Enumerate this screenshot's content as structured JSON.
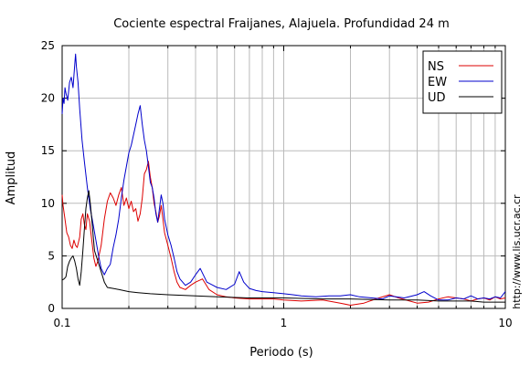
{
  "chart_data": {
    "type": "line",
    "title": "Cociente espectral Fraijanes, Alajuela. Profundidad 24 m",
    "xlabel": "Periodo (s)",
    "ylabel": "Amplitud",
    "x_scale": "log",
    "xlim": [
      0.1,
      10
    ],
    "ylim": [
      0,
      25
    ],
    "x_ticks": [
      0.1,
      1,
      10
    ],
    "x_tick_labels": [
      "0.1",
      "1",
      "10"
    ],
    "y_ticks": [
      0,
      5,
      10,
      15,
      20,
      25
    ],
    "y_tick_labels": [
      "0",
      "5",
      "10",
      "15",
      "20",
      "25"
    ],
    "grid": true,
    "legend_position": "top-right",
    "side_text": "http://www.lis.ucr.ac.cr",
    "series": [
      {
        "name": "NS",
        "color": "#dd0000",
        "points": [
          [
            0.1,
            10.8
          ],
          [
            0.101,
            9.8
          ],
          [
            0.103,
            8.5
          ],
          [
            0.105,
            7.2
          ],
          [
            0.107,
            6.8
          ],
          [
            0.109,
            6.0
          ],
          [
            0.111,
            5.7
          ],
          [
            0.113,
            6.5
          ],
          [
            0.115,
            6.0
          ],
          [
            0.117,
            5.8
          ],
          [
            0.12,
            6.8
          ],
          [
            0.122,
            8.5
          ],
          [
            0.124,
            9.0
          ],
          [
            0.126,
            8.0
          ],
          [
            0.128,
            7.5
          ],
          [
            0.13,
            9.0
          ],
          [
            0.133,
            8.3
          ],
          [
            0.136,
            6.5
          ],
          [
            0.139,
            4.8
          ],
          [
            0.142,
            4.0
          ],
          [
            0.145,
            4.5
          ],
          [
            0.15,
            6.0
          ],
          [
            0.155,
            8.5
          ],
          [
            0.16,
            10.2
          ],
          [
            0.165,
            11.0
          ],
          [
            0.17,
            10.5
          ],
          [
            0.175,
            9.8
          ],
          [
            0.18,
            10.8
          ],
          [
            0.185,
            11.5
          ],
          [
            0.19,
            9.8
          ],
          [
            0.195,
            10.5
          ],
          [
            0.2,
            9.5
          ],
          [
            0.205,
            10.2
          ],
          [
            0.21,
            9.2
          ],
          [
            0.215,
            9.5
          ],
          [
            0.22,
            8.3
          ],
          [
            0.225,
            9.0
          ],
          [
            0.23,
            10.5
          ],
          [
            0.235,
            12.8
          ],
          [
            0.24,
            13.2
          ],
          [
            0.245,
            14.0
          ],
          [
            0.25,
            12.5
          ],
          [
            0.255,
            11.5
          ],
          [
            0.26,
            10.0
          ],
          [
            0.265,
            9.2
          ],
          [
            0.27,
            8.2
          ],
          [
            0.275,
            8.8
          ],
          [
            0.28,
            9.8
          ],
          [
            0.285,
            8.5
          ],
          [
            0.29,
            7.2
          ],
          [
            0.3,
            6.0
          ],
          [
            0.31,
            4.8
          ],
          [
            0.32,
            3.5
          ],
          [
            0.33,
            2.5
          ],
          [
            0.34,
            2.0
          ],
          [
            0.36,
            1.8
          ],
          [
            0.38,
            2.2
          ],
          [
            0.4,
            2.5
          ],
          [
            0.43,
            2.8
          ],
          [
            0.46,
            1.8
          ],
          [
            0.5,
            1.3
          ],
          [
            0.55,
            1.1
          ],
          [
            0.6,
            1.0
          ],
          [
            0.7,
            0.9
          ],
          [
            0.8,
            0.9
          ],
          [
            0.9,
            0.9
          ],
          [
            1.0,
            0.8
          ],
          [
            1.2,
            0.7
          ],
          [
            1.5,
            0.8
          ],
          [
            1.8,
            0.5
          ],
          [
            2.0,
            0.3
          ],
          [
            2.3,
            0.5
          ],
          [
            2.6,
            0.9
          ],
          [
            3.0,
            1.3
          ],
          [
            3.3,
            1.0
          ],
          [
            3.7,
            0.7
          ],
          [
            4.0,
            0.5
          ],
          [
            4.5,
            0.6
          ],
          [
            5.0,
            0.9
          ],
          [
            5.5,
            1.1
          ],
          [
            6.0,
            1.0
          ],
          [
            6.5,
            0.9
          ],
          [
            7.0,
            0.7
          ],
          [
            7.5,
            0.9
          ],
          [
            8.0,
            1.0
          ],
          [
            8.5,
            0.8
          ],
          [
            9.0,
            1.1
          ],
          [
            9.5,
            0.9
          ],
          [
            10,
            1.0
          ]
        ]
      },
      {
        "name": "EW",
        "color": "#0000cc",
        "points": [
          [
            0.1,
            18.5
          ],
          [
            0.101,
            20.0
          ],
          [
            0.102,
            19.5
          ],
          [
            0.103,
            21.0
          ],
          [
            0.104,
            20.5
          ],
          [
            0.106,
            19.8
          ],
          [
            0.108,
            21.5
          ],
          [
            0.11,
            22.0
          ],
          [
            0.112,
            21.0
          ],
          [
            0.114,
            23.2
          ],
          [
            0.115,
            24.2
          ],
          [
            0.116,
            23.0
          ],
          [
            0.118,
            21.5
          ],
          [
            0.12,
            19.0
          ],
          [
            0.123,
            16.0
          ],
          [
            0.126,
            14.0
          ],
          [
            0.13,
            11.5
          ],
          [
            0.134,
            9.5
          ],
          [
            0.138,
            8.0
          ],
          [
            0.142,
            6.5
          ],
          [
            0.146,
            5.0
          ],
          [
            0.15,
            3.8
          ],
          [
            0.155,
            3.2
          ],
          [
            0.16,
            3.8
          ],
          [
            0.165,
            4.2
          ],
          [
            0.17,
            5.8
          ],
          [
            0.175,
            7.0
          ],
          [
            0.18,
            8.5
          ],
          [
            0.185,
            10.5
          ],
          [
            0.19,
            12.2
          ],
          [
            0.195,
            13.5
          ],
          [
            0.2,
            14.8
          ],
          [
            0.205,
            15.5
          ],
          [
            0.21,
            16.5
          ],
          [
            0.215,
            17.5
          ],
          [
            0.22,
            18.5
          ],
          [
            0.225,
            19.3
          ],
          [
            0.23,
            17.5
          ],
          [
            0.235,
            16.0
          ],
          [
            0.24,
            15.0
          ],
          [
            0.245,
            13.5
          ],
          [
            0.25,
            12.0
          ],
          [
            0.255,
            11.5
          ],
          [
            0.26,
            10.5
          ],
          [
            0.265,
            9.0
          ],
          [
            0.27,
            8.2
          ],
          [
            0.275,
            9.5
          ],
          [
            0.28,
            10.8
          ],
          [
            0.285,
            10.0
          ],
          [
            0.29,
            8.5
          ],
          [
            0.3,
            7.0
          ],
          [
            0.31,
            6.0
          ],
          [
            0.32,
            4.8
          ],
          [
            0.33,
            3.5
          ],
          [
            0.34,
            2.8
          ],
          [
            0.36,
            2.2
          ],
          [
            0.38,
            2.5
          ],
          [
            0.4,
            3.2
          ],
          [
            0.42,
            3.8
          ],
          [
            0.45,
            2.5
          ],
          [
            0.48,
            2.2
          ],
          [
            0.5,
            2.0
          ],
          [
            0.55,
            1.8
          ],
          [
            0.6,
            2.3
          ],
          [
            0.63,
            3.5
          ],
          [
            0.66,
            2.5
          ],
          [
            0.7,
            1.9
          ],
          [
            0.75,
            1.7
          ],
          [
            0.8,
            1.6
          ],
          [
            0.9,
            1.5
          ],
          [
            1.0,
            1.4
          ],
          [
            1.1,
            1.3
          ],
          [
            1.2,
            1.2
          ],
          [
            1.4,
            1.1
          ],
          [
            1.6,
            1.2
          ],
          [
            1.8,
            1.2
          ],
          [
            2.0,
            1.3
          ],
          [
            2.2,
            1.1
          ],
          [
            2.5,
            1.0
          ],
          [
            2.8,
            0.9
          ],
          [
            3.0,
            1.2
          ],
          [
            3.5,
            1.0
          ],
          [
            4.0,
            1.3
          ],
          [
            4.3,
            1.6
          ],
          [
            4.6,
            1.2
          ],
          [
            5.0,
            0.8
          ],
          [
            5.5,
            0.8
          ],
          [
            6.0,
            1.0
          ],
          [
            6.5,
            0.9
          ],
          [
            7.0,
            1.2
          ],
          [
            7.5,
            0.9
          ],
          [
            8.0,
            1.0
          ],
          [
            8.5,
            0.9
          ],
          [
            9.0,
            1.1
          ],
          [
            9.5,
            1.0
          ],
          [
            10,
            1.6
          ]
        ]
      },
      {
        "name": "UD",
        "color": "#000000",
        "points": [
          [
            0.1,
            2.7
          ],
          [
            0.102,
            2.8
          ],
          [
            0.104,
            3.0
          ],
          [
            0.106,
            4.0
          ],
          [
            0.108,
            4.5
          ],
          [
            0.11,
            4.8
          ],
          [
            0.112,
            5.0
          ],
          [
            0.114,
            4.5
          ],
          [
            0.116,
            3.8
          ],
          [
            0.118,
            2.8
          ],
          [
            0.12,
            2.2
          ],
          [
            0.122,
            3.5
          ],
          [
            0.124,
            5.5
          ],
          [
            0.126,
            7.5
          ],
          [
            0.128,
            9.5
          ],
          [
            0.13,
            10.5
          ],
          [
            0.132,
            11.2
          ],
          [
            0.134,
            10.0
          ],
          [
            0.136,
            8.5
          ],
          [
            0.138,
            7.0
          ],
          [
            0.14,
            5.5
          ],
          [
            0.145,
            4.5
          ],
          [
            0.15,
            3.5
          ],
          [
            0.155,
            2.5
          ],
          [
            0.16,
            2.0
          ],
          [
            0.17,
            1.9
          ],
          [
            0.18,
            1.8
          ],
          [
            0.2,
            1.6
          ],
          [
            0.22,
            1.5
          ],
          [
            0.25,
            1.4
          ],
          [
            0.3,
            1.3
          ],
          [
            0.4,
            1.2
          ],
          [
            0.5,
            1.1
          ],
          [
            0.7,
            1.0
          ],
          [
            1.0,
            1.0
          ],
          [
            1.5,
            0.9
          ],
          [
            2.0,
            0.9
          ],
          [
            3.0,
            0.8
          ],
          [
            4.0,
            0.8
          ],
          [
            5.0,
            0.7
          ],
          [
            6.0,
            0.7
          ],
          [
            7.0,
            0.7
          ],
          [
            8.0,
            0.6
          ],
          [
            10,
            0.6
          ]
        ]
      }
    ]
  }
}
